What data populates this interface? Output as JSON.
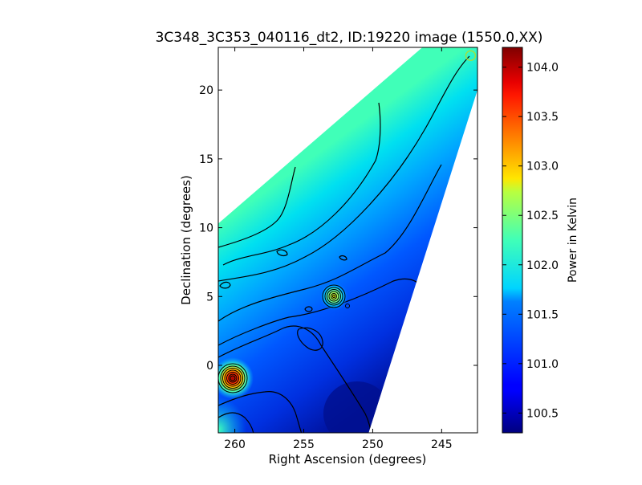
{
  "figure": {
    "title": "3C348_3C353_040116_dt2, ID:19220 image (1550.0,XX)",
    "xlabel": "Right Ascension (degrees)",
    "ylabel": "Declination (degrees)",
    "colorbar_label": "Power in Kelvin"
  },
  "chart_data": {
    "type": "heatmap",
    "title": "3C348_3C353_040116_dt2, ID:19220 image (1550.0,XX)",
    "xlabel": "Right Ascension (degrees)",
    "ylabel": "Declination (degrees)",
    "xlim": [
      261.2,
      242.4
    ],
    "ylim": [
      -4.9,
      23.1
    ],
    "x_inverted": true,
    "x_ticks": [
      260,
      255,
      250,
      245
    ],
    "y_ticks": [
      0,
      5,
      10,
      15,
      20
    ],
    "colormap": "jet",
    "colorbar": {
      "label": "Power in Kelvin",
      "range": [
        100.3,
        104.2
      ],
      "ticks": [
        100.5,
        101.0,
        101.5,
        102.0,
        102.5,
        103.0,
        103.5,
        104.0
      ],
      "tick_labels": [
        "100.5",
        "101.0",
        "101.5",
        "102.0",
        "102.5",
        "103.0",
        "103.5",
        "104.0"
      ]
    },
    "sources": [
      {
        "ra": 260.0,
        "dec": -1.0,
        "peak_kelvin": 104.1
      },
      {
        "ra": 252.8,
        "dec": 5.0,
        "peak_kelvin": 102.8
      }
    ],
    "footprint_polygon": [
      [
        261.2,
        10.3
      ],
      [
        246.4,
        23.1
      ],
      [
        242.4,
        23.1
      ],
      [
        242.4,
        20.0
      ],
      [
        250.3,
        -4.9
      ],
      [
        261.2,
        -4.9
      ]
    ],
    "background_gradient": {
      "min_kelvin": 100.4,
      "max_kelvin": 102.0,
      "low_region": {
        "ra": 250.2,
        "dec": -4.0
      },
      "high_region": {
        "ra": 261.2,
        "dec": 10.0
      }
    },
    "marker": {
      "ra": 242.9,
      "dec": 22.5,
      "shape": "circle"
    },
    "grid": false,
    "contours": true
  }
}
